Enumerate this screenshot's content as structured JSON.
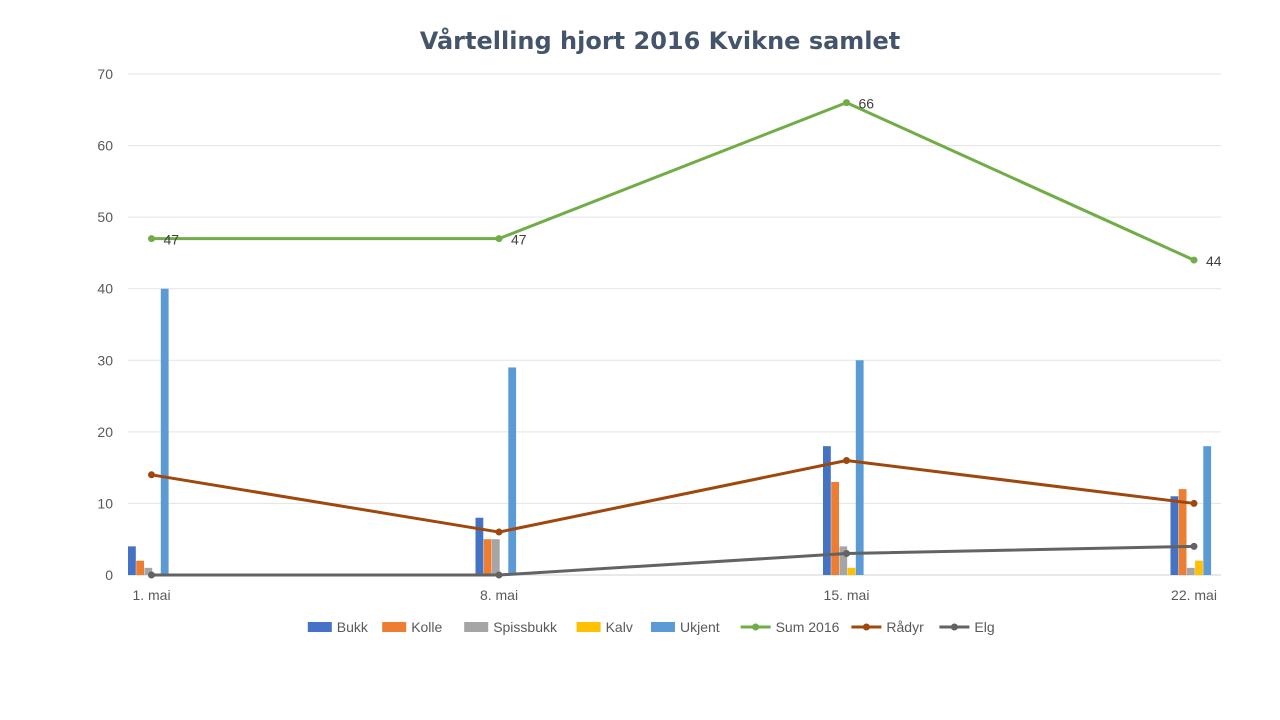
{
  "chart_data": {
    "type": "bar",
    "title": "Vårtelling hjort 2016 Kvikne samlet",
    "categories": [
      "1. mai",
      "8. mai",
      "15. mai",
      "22. mai"
    ],
    "ylim": [
      0,
      70
    ],
    "yticks": [
      0,
      10,
      20,
      30,
      40,
      50,
      60,
      70
    ],
    "grid": true,
    "legend_position": "bottom",
    "bar_series": [
      {
        "name": "Bukk",
        "color": "#4472c4",
        "values": [
          4,
          8,
          18,
          11
        ]
      },
      {
        "name": "Kolle",
        "color": "#ed7d31",
        "values": [
          2,
          5,
          13,
          12
        ]
      },
      {
        "name": "Spissbukk",
        "color": "#a5a5a5",
        "values": [
          1,
          5,
          4,
          1
        ]
      },
      {
        "name": "Kalv",
        "color": "#ffc000",
        "values": [
          0,
          0,
          1,
          2
        ]
      },
      {
        "name": "Ukjent",
        "color": "#5b9bd5",
        "values": [
          40,
          29,
          30,
          18
        ]
      }
    ],
    "line_series": [
      {
        "name": "Sum 2016",
        "color": "#70ad47",
        "values": [
          47,
          47,
          66,
          44
        ],
        "data_labels": [
          "47",
          "47",
          "66",
          "44"
        ]
      },
      {
        "name": "Rådyr",
        "color": "#9e480e",
        "values": [
          14,
          6,
          16,
          10
        ]
      },
      {
        "name": "Elg",
        "color": "#636363",
        "values": [
          0,
          0,
          3,
          4
        ]
      }
    ]
  }
}
